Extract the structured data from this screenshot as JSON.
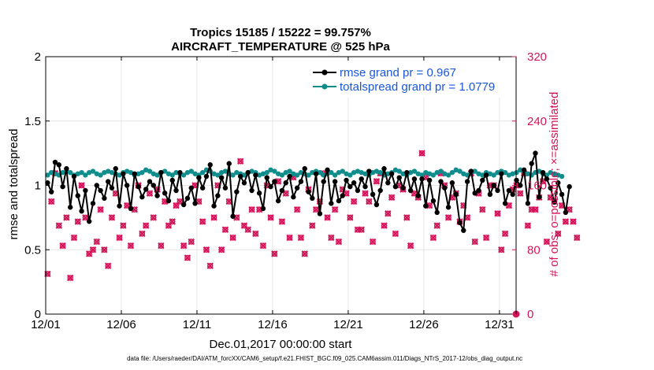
{
  "chart_data": {
    "type": "line",
    "title": "Tropics 15185 / 15222 = 99.757%",
    "subtitle": "AIRCRAFT_TEMPERATURE @ 525 hPa",
    "xlabel": "Dec.01,2017 00:00:00 start",
    "ylabel": "rmse and totalspread",
    "ylabel_right": "# of obs: o=possible; ×=assimilated",
    "xlim": [
      0,
      31.1
    ],
    "ylim": [
      0,
      2
    ],
    "ylim_right": [
      0,
      320
    ],
    "x_ticks": [
      {
        "value": 0,
        "label": "12/01"
      },
      {
        "value": 5,
        "label": "12/06"
      },
      {
        "value": 10,
        "label": "12/11"
      },
      {
        "value": 15,
        "label": "12/16"
      },
      {
        "value": 20,
        "label": "12/21"
      },
      {
        "value": 25,
        "label": "12/26"
      },
      {
        "value": 30,
        "label": "12/31"
      }
    ],
    "y_ticks": [
      {
        "value": 0,
        "label": "0"
      },
      {
        "value": 0.5,
        "label": "0.5"
      },
      {
        "value": 1,
        "label": "1"
      },
      {
        "value": 1.5,
        "label": "1.5"
      },
      {
        "value": 2,
        "label": "2"
      }
    ],
    "y_ticks_right": [
      {
        "value": 0,
        "label": "0"
      },
      {
        "value": 80,
        "label": "80"
      },
      {
        "value": 160,
        "label": "160"
      },
      {
        "value": 240,
        "label": "240"
      },
      {
        "value": 320,
        "label": "320"
      }
    ],
    "grid": true,
    "legend_position": "top-right",
    "x_start": 0.125,
    "x_step": 0.25,
    "series": [
      {
        "name": "rmse grand pr = 0.967",
        "axis": "left",
        "color": "#000000",
        "marker": "circle",
        "values": [
          1.02,
          0.95,
          1.18,
          1.16,
          0.99,
          1.13,
          0.83,
          1.07,
          0.92,
          0.8,
          0.96,
          0.72,
          0.86,
          1.0,
          0.96,
          0.9,
          1.03,
          0.98,
          1.13,
          0.84,
          1.09,
          1.0,
          0.82,
          1.09,
          0.99,
          0.91,
          0.97,
          1.03,
          1.0,
          0.92,
          1.1,
          0.94,
          0.88,
          1.04,
          0.96,
          1.1,
          0.85,
          0.9,
          0.98,
          0.86,
          1.06,
          0.98,
          1.07,
          1.16,
          0.84,
          0.92,
          1.06,
          0.98,
          1.17,
          0.76,
          0.95,
          1.07,
          1.02,
          1.1,
          0.96,
          1.08,
          0.94,
          0.82,
          1.06,
          0.99,
          1.03,
          0.88,
          0.96,
          1.02,
          1.07,
          0.91,
          0.98,
          1.03,
          1.13,
          0.95,
          0.9,
          1.09,
          0.78,
          1.03,
          1.12,
          0.86,
          1.03,
          0.88,
          0.92,
          1.04,
          0.99,
          1.02,
          0.96,
          1.05,
          0.99,
          1.11,
          0.93,
          0.85,
          0.96,
          1.13,
          1.02,
          1.09,
          0.99,
          1.06,
          0.98,
          1.1,
          0.96,
          1.05,
          0.92,
          1.05,
          0.84,
          1.04,
          0.88,
          0.79,
          1.03,
          0.98,
          0.83,
          1.02,
          0.93,
          0.71,
          0.65,
          1.03,
          1.11,
          0.94,
          0.96,
          1.04,
          1.08,
          0.93,
          1.0,
          0.96,
          1.09,
          0.86,
          0.96,
          0.93,
          1.04,
          1.0,
          1.12,
          0.86,
          1.17,
          1.25,
          0.91,
          1.1,
          1.05,
          0.98,
          0.87,
          1.02,
          0.93,
          0.79,
          0.99
        ],
        "values_note": "rmse estimated from plot"
      },
      {
        "name": "totalspread grand pr = 1.0779",
        "axis": "left",
        "color": "#0f8c8c",
        "marker": "circle",
        "values": [
          1.08,
          1.1,
          1.09,
          1.08,
          1.1,
          1.11,
          1.1,
          1.08,
          1.09,
          1.1,
          1.08,
          1.1,
          1.11,
          1.09,
          1.08,
          1.1,
          1.11,
          1.1,
          1.09,
          1.08,
          1.1,
          1.11,
          1.1,
          1.08,
          1.09,
          1.1,
          1.12,
          1.11,
          1.09,
          1.08,
          1.1,
          1.11,
          1.09,
          1.08,
          1.1,
          1.09,
          1.08,
          1.1,
          1.11,
          1.09,
          1.08,
          1.1,
          1.12,
          1.11,
          1.09,
          1.08,
          1.1,
          1.11,
          1.09,
          1.08,
          1.1,
          1.09,
          1.08,
          1.1,
          1.11,
          1.1,
          1.08,
          1.09,
          1.1,
          1.12,
          1.11,
          1.09,
          1.08,
          1.1,
          1.11,
          1.09,
          1.08,
          1.1,
          1.09,
          1.08,
          1.1,
          1.11,
          1.1,
          1.08,
          1.09,
          1.1,
          1.08,
          1.1,
          1.11,
          1.09,
          1.08,
          1.1,
          1.11,
          1.1,
          1.09,
          1.08,
          1.1,
          1.11,
          1.1,
          1.08,
          1.09,
          1.1,
          1.12,
          1.11,
          1.09,
          1.08,
          1.1,
          1.11,
          1.09,
          1.08,
          1.1,
          1.09,
          1.08,
          1.1,
          1.11,
          1.09,
          1.08,
          1.1,
          1.12,
          1.11,
          1.09,
          1.08,
          1.1,
          1.11,
          1.09,
          1.08,
          1.1,
          1.09,
          1.08,
          1.1,
          1.11,
          1.1,
          1.08,
          1.09,
          1.1,
          1.12,
          1.11,
          1.09,
          1.08,
          1.1,
          1.11,
          1.09,
          1.08,
          1.1,
          1.09,
          1.08,
          1.07
        ]
      },
      {
        "name": "# of obs possible",
        "axis": "right",
        "color": "#d4145a",
        "marker": "circle",
        "values": [
          50,
          140,
          175,
          110,
          85,
          120,
          45,
          95,
          115,
          160,
          120,
          75,
          80,
          90,
          130,
          80,
          60,
          120,
          150,
          95,
          110,
          135,
          85,
          130,
          160,
          100,
          110,
          150,
          120,
          155,
          85,
          140,
          110,
          115,
          135,
          140,
          85,
          70,
          90,
          160,
          140,
          115,
          80,
          60,
          120,
          160,
          80,
          105,
          140,
          95,
          120,
          190,
          110,
          105,
          130,
          100,
          130,
          85,
          160,
          120,
          75,
          165,
          115,
          150,
          95,
          170,
          130,
          95,
          75,
          155,
          110,
          130,
          140,
          175,
          120,
          95,
          130,
          90,
          155,
          150,
          120,
          140,
          105,
          105,
          150,
          140,
          90,
          165,
          175,
          110,
          125,
          145,
          100,
          160,
          155,
          120,
          85,
          150,
          145,
          200,
          170,
          135,
          95,
          110,
          175,
          160,
          120,
          145,
          150,
          115,
          135,
          120,
          175,
          90,
          150,
          130,
          95,
          160,
          160,
          125,
          80,
          100,
          135,
          155,
          160,
          150,
          175,
          110,
          130,
          130,
          145,
          165,
          90,
          145,
          140,
          100,
          135,
          115,
          130,
          115,
          95
        ]
      },
      {
        "name": "# of obs assimilated",
        "axis": "right",
        "color": "#d4145a",
        "marker": "x",
        "values": [
          50,
          140,
          175,
          110,
          85,
          120,
          45,
          95,
          115,
          160,
          120,
          75,
          80,
          90,
          130,
          80,
          60,
          120,
          150,
          95,
          110,
          135,
          85,
          130,
          160,
          100,
          110,
          150,
          120,
          155,
          85,
          140,
          110,
          115,
          135,
          140,
          85,
          70,
          90,
          160,
          140,
          115,
          80,
          60,
          120,
          160,
          80,
          105,
          140,
          95,
          120,
          190,
          110,
          105,
          130,
          100,
          130,
          85,
          160,
          120,
          75,
          165,
          115,
          150,
          95,
          170,
          130,
          95,
          75,
          155,
          110,
          130,
          140,
          175,
          120,
          95,
          130,
          90,
          155,
          150,
          120,
          140,
          105,
          105,
          150,
          140,
          90,
          165,
          175,
          110,
          125,
          145,
          100,
          160,
          155,
          120,
          85,
          150,
          145,
          200,
          170,
          135,
          95,
          110,
          175,
          160,
          120,
          145,
          150,
          115,
          135,
          120,
          175,
          90,
          150,
          130,
          95,
          160,
          160,
          125,
          80,
          100,
          135,
          155,
          160,
          150,
          175,
          110,
          130,
          130,
          145,
          165,
          90,
          145,
          140,
          100,
          135,
          115,
          130,
          115,
          95
        ]
      }
    ],
    "legend": [
      {
        "label": "rmse grand pr = 0.967",
        "color": "#000000"
      },
      {
        "label": "totalspread grand pr = 1.0779",
        "color": "#0f8c8c"
      }
    ],
    "footnote": "data file: /Users/raeder/DAI/ATM_forcXX/CAM6_setup/f.e21.FHIST_BGC.f09_025.CAM6assim.011/Diags_NTrS_2017-12/obs_diag_output.nc"
  }
}
